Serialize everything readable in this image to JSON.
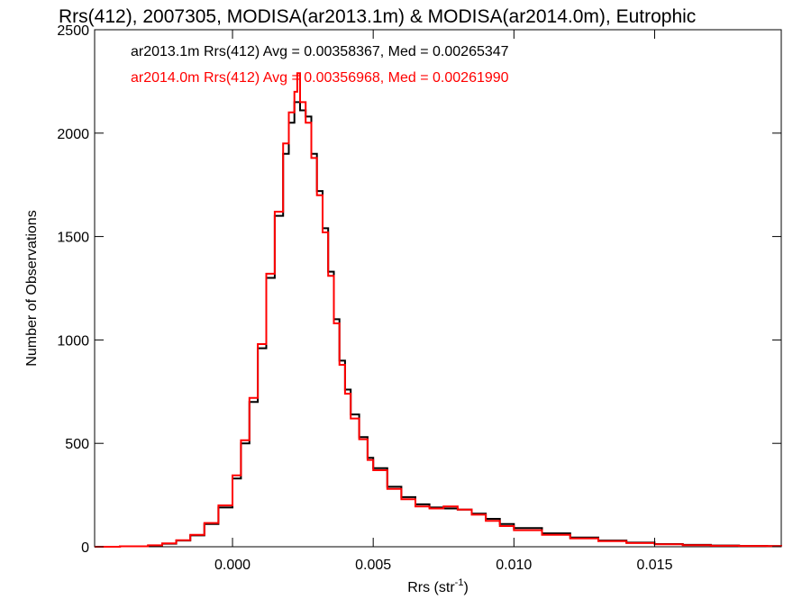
{
  "chart_data": {
    "type": "line",
    "title": "Rrs(412), 2007305, MODISA(ar2013.1m) & MODISA(ar2014.0m), Eutrophic",
    "xlabel_main": "Rrs (str",
    "xlabel_sup": "-1",
    "xlabel_close": ")",
    "ylabel": "Number of Observations",
    "xlim": [
      -0.0049,
      0.0195
    ],
    "ylim": [
      0,
      2500
    ],
    "xticks": [
      0.0,
      0.005,
      0.01,
      0.015
    ],
    "xtick_labels": [
      "0.000",
      "0.005",
      "0.010",
      "0.015"
    ],
    "yticks": [
      0,
      500,
      1000,
      1500,
      2000,
      2500
    ],
    "ytick_labels": [
      "0",
      "500",
      "1000",
      "1500",
      "2000",
      "2500"
    ],
    "grid": false,
    "legend_placement": "top-left",
    "series": [
      {
        "name": "ar2013.1m Rrs(412) Avg = 0.00358367, Med = 0.00265347",
        "color": "#000000",
        "x": [
          -0.0049,
          -0.004,
          -0.003,
          -0.0025,
          -0.002,
          -0.0015,
          -0.001,
          -0.0005,
          0.0,
          0.0003,
          0.0006,
          0.0009,
          0.0012,
          0.0015,
          0.0018,
          0.002,
          0.0022,
          0.0024,
          0.0026,
          0.0028,
          0.003,
          0.0032,
          0.0034,
          0.0036,
          0.0038,
          0.004,
          0.0042,
          0.0045,
          0.0048,
          0.005,
          0.0055,
          0.006,
          0.0065,
          0.007,
          0.0075,
          0.008,
          0.0085,
          0.009,
          0.0095,
          0.01,
          0.011,
          0.012,
          0.013,
          0.014,
          0.015,
          0.016,
          0.017,
          0.018,
          0.019,
          0.0195
        ],
        "values": [
          0,
          2,
          6,
          15,
          30,
          55,
          110,
          190,
          330,
          500,
          700,
          960,
          1300,
          1600,
          1900,
          2050,
          2150,
          2110,
          2080,
          1900,
          1720,
          1540,
          1330,
          1100,
          900,
          760,
          640,
          530,
          430,
          380,
          290,
          240,
          205,
          190,
          185,
          180,
          160,
          135,
          110,
          90,
          65,
          45,
          30,
          20,
          13,
          9,
          6,
          4,
          3,
          2
        ]
      },
      {
        "name": "ar2014.0m Rrs(412) Avg = 0.00356968, Med = 0.00261990",
        "color": "#ff0000",
        "x": [
          -0.0049,
          -0.004,
          -0.003,
          -0.0025,
          -0.002,
          -0.0015,
          -0.001,
          -0.0005,
          0.0,
          0.0003,
          0.0006,
          0.0009,
          0.0012,
          0.0015,
          0.0018,
          0.002,
          0.0022,
          0.0023,
          0.0024,
          0.0026,
          0.0028,
          0.003,
          0.0032,
          0.0034,
          0.0036,
          0.0038,
          0.004,
          0.0042,
          0.0045,
          0.0048,
          0.005,
          0.0055,
          0.006,
          0.0065,
          0.007,
          0.0075,
          0.008,
          0.0085,
          0.009,
          0.0095,
          0.01,
          0.011,
          0.012,
          0.013,
          0.014,
          0.015,
          0.016,
          0.017,
          0.018,
          0.019,
          0.0195
        ],
        "values": [
          0,
          2,
          7,
          16,
          32,
          58,
          115,
          200,
          345,
          515,
          720,
          980,
          1320,
          1620,
          1950,
          2100,
          2200,
          2290,
          2150,
          2050,
          1880,
          1700,
          1520,
          1310,
          1080,
          880,
          740,
          620,
          520,
          420,
          370,
          280,
          230,
          195,
          185,
          195,
          180,
          155,
          125,
          100,
          80,
          58,
          40,
          27,
          18,
          12,
          8,
          5,
          4,
          3,
          2
        ]
      }
    ]
  }
}
